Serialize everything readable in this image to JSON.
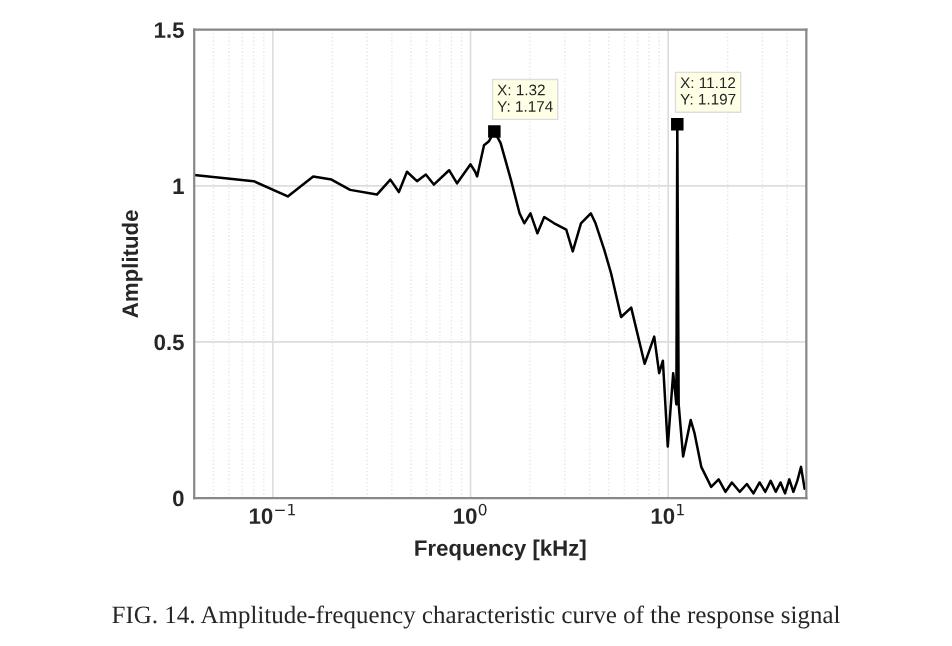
{
  "chart_data": {
    "type": "line",
    "xlabel": "Frequency [kHz]",
    "ylabel": "Amplitude",
    "log": "x",
    "grid": true,
    "xlim": [
      0.04,
      50
    ],
    "ylim": [
      0,
      1.5
    ],
    "xticks": [
      {
        "value": 0.1,
        "label": "10$^{−1}$"
      },
      {
        "value": 1,
        "label": "10$^{0}$"
      },
      {
        "value": 10,
        "label": "10$^{1}$"
      }
    ],
    "yticks": [
      0,
      0.5,
      1,
      1.5
    ],
    "series": [
      {
        "color": "#000000",
        "x": [
          0.04,
          0.08,
          0.119,
          0.16,
          0.198,
          0.246,
          0.336,
          0.393,
          0.434,
          0.477,
          0.536,
          0.594,
          0.652,
          0.779,
          0.855,
          1.0,
          1.056,
          1.08,
          1.17,
          1.24,
          1.32,
          1.42,
          1.6,
          1.77,
          1.87,
          2.01,
          2.18,
          2.36,
          2.65,
          3.05,
          3.29,
          3.62,
          4.06,
          4.29,
          4.75,
          5.14,
          5.78,
          6.5,
          7.6,
          8.5,
          9.0,
          9.4,
          9.95,
          10.6,
          11.0,
          11.12,
          11.3,
          11.9,
          13.0,
          13.6,
          14.7,
          16.5,
          18.0,
          19.5,
          21.0,
          23.0,
          25.0,
          27.0,
          29.0,
          31.0,
          33.0,
          35.0,
          37.0,
          39.0,
          41.0,
          43.0,
          45.0,
          47.0,
          49.0
        ],
        "values": [
          1.035,
          1.015,
          0.966,
          1.03,
          1.02,
          0.987,
          0.972,
          1.02,
          0.98,
          1.045,
          1.015,
          1.036,
          1.004,
          1.05,
          1.008,
          1.069,
          1.045,
          1.03,
          1.13,
          1.143,
          1.174,
          1.137,
          1.02,
          0.912,
          0.88,
          0.912,
          0.848,
          0.9,
          0.88,
          0.86,
          0.79,
          0.88,
          0.912,
          0.88,
          0.795,
          0.72,
          0.58,
          0.61,
          0.43,
          0.517,
          0.4,
          0.44,
          0.165,
          0.4,
          0.3,
          1.197,
          0.3,
          0.133,
          0.25,
          0.207,
          0.1,
          0.036,
          0.06,
          0.02,
          0.05,
          0.02,
          0.045,
          0.015,
          0.05,
          0.02,
          0.055,
          0.02,
          0.05,
          0.015,
          0.06,
          0.02,
          0.055,
          0.1,
          0.03
        ]
      }
    ],
    "annotations": [
      {
        "text": "X: 1.32\nY: 1.174",
        "x": 1.32,
        "y": 1.174
      },
      {
        "text": "X: 11.12\nY: 1.197",
        "x": 11.12,
        "y": 1.197
      },
      "FIG. 14. Amplitude-frequency characteristic curve of the response signal"
    ]
  }
}
